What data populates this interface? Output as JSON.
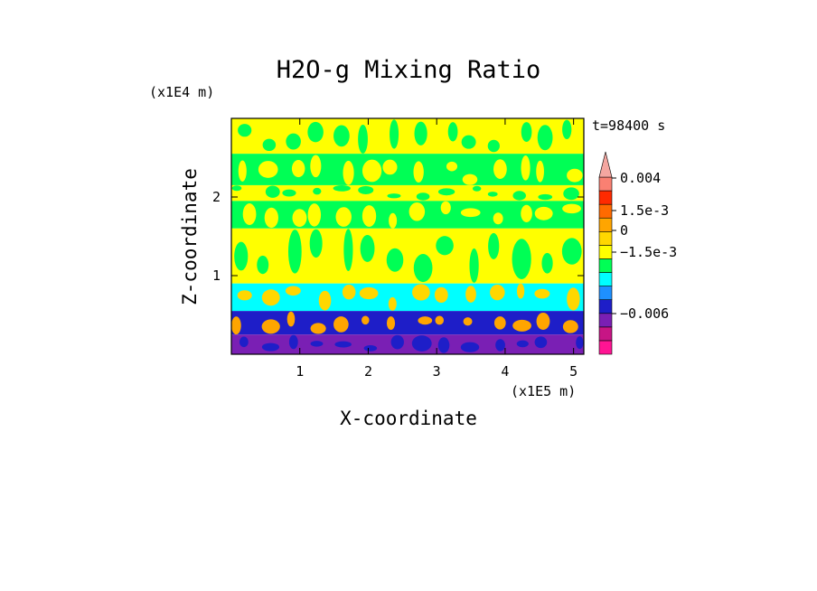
{
  "chart_data": {
    "type": "heatmap",
    "title": "H2O-g Mixing Ratio",
    "xlabel": "X-coordinate",
    "ylabel": "Z-coordinate",
    "x_scale_label": "(x1E5 m)",
    "y_scale_label": "(x1E4 m)",
    "time_label": "t=98400 s",
    "xlim": [
      0,
      5.15
    ],
    "ylim": [
      0,
      3.0
    ],
    "x_ticks": [
      "1",
      "2",
      "3",
      "4",
      "5"
    ],
    "x_tick_values": [
      1,
      2,
      3,
      4,
      5
    ],
    "y_ticks": [
      "1",
      "2"
    ],
    "y_tick_values": [
      1,
      2
    ],
    "colorbar": {
      "colors": [
        "#ff1493",
        "#c71585",
        "#7a1fb4",
        "#1e1ec8",
        "#1e90ff",
        "#00ffff",
        "#00ff55",
        "#ffff00",
        "#ffd700",
        "#ffa500",
        "#ff6a00",
        "#ff2a00",
        "#fa8072",
        "#f4a6a0"
      ],
      "tick_labels": [
        "0.004",
        "1.5e-3",
        "0",
        "−1.5e-3",
        "−0.006"
      ]
    },
    "field_levels": [
      {
        "z_from": 2.55,
        "z_to": 3.0,
        "dominant": "#ffff00",
        "secondary": "#00ff55"
      },
      {
        "z_from": 2.15,
        "z_to": 2.55,
        "dominant": "#00ff55",
        "secondary": "#ffff00"
      },
      {
        "z_from": 1.95,
        "z_to": 2.15,
        "dominant": "#ffff00",
        "secondary": "#00ff55"
      },
      {
        "z_from": 1.6,
        "z_to": 1.95,
        "dominant": "#00ff55",
        "secondary": "#ffff00"
      },
      {
        "z_from": 0.9,
        "z_to": 1.6,
        "dominant": "#ffff00",
        "secondary": "#00ff55"
      },
      {
        "z_from": 0.55,
        "z_to": 0.9,
        "dominant": "#00ffff",
        "secondary": "#ffd700"
      },
      {
        "z_from": 0.25,
        "z_to": 0.55,
        "dominant": "#1e1ec8",
        "secondary": "#ffa500"
      },
      {
        "z_from": 0.0,
        "z_to": 0.25,
        "dominant": "#7a1fb4",
        "secondary": "#1e1ec8"
      }
    ]
  }
}
